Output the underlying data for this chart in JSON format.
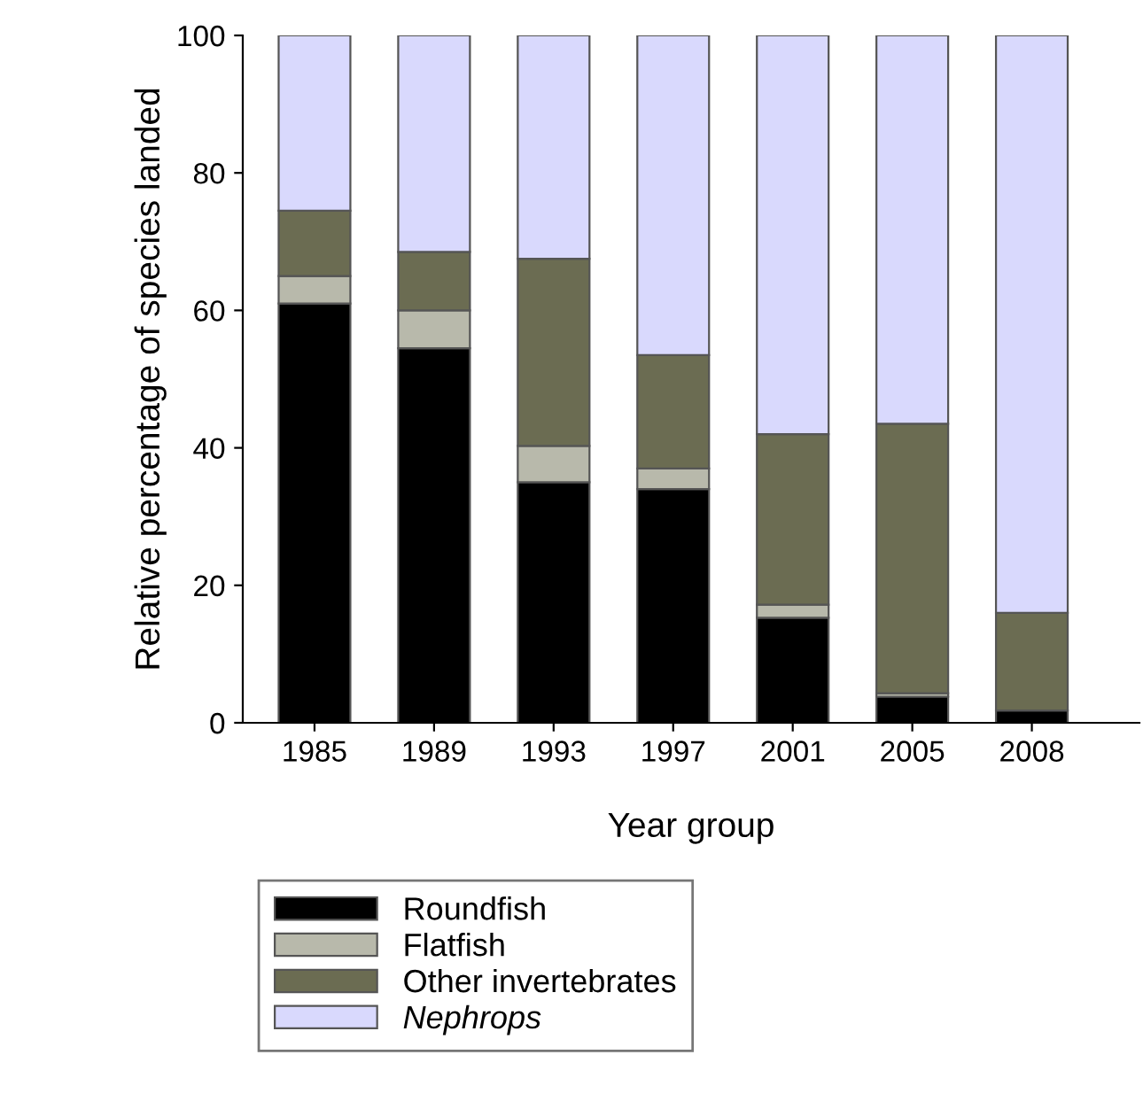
{
  "chart_data": {
    "type": "bar",
    "stacked": true,
    "xlabel": "Year group",
    "ylabel": "Relative percentage of species landed",
    "categories": [
      "1985",
      "1989",
      "1993",
      "1997",
      "2001",
      "2005",
      "2008"
    ],
    "series": [
      {
        "name": "Roundfish",
        "color": "#000000",
        "values": [
          61,
          54.5,
          35,
          34,
          15.3,
          3.8,
          1.8
        ]
      },
      {
        "name": "Flatfish",
        "color": "#b8b9ab",
        "values": [
          4,
          5.5,
          5.3,
          3,
          1.9,
          0.5,
          null
        ]
      },
      {
        "name": "Other invertebrates",
        "color": "#6b6c52",
        "values": [
          9.5,
          8.5,
          27.2,
          16.5,
          24.8,
          39.2,
          14.2
        ]
      },
      {
        "name": "Nephrops",
        "color": "#d9d9fd",
        "values": [
          25.5,
          31.5,
          32.5,
          46.5,
          58,
          56.5,
          84
        ]
      }
    ],
    "ylim": [
      0,
      100
    ],
    "yticks": [
      0,
      20,
      40,
      60,
      80,
      100
    ],
    "grid": false,
    "legend": "bottom"
  }
}
